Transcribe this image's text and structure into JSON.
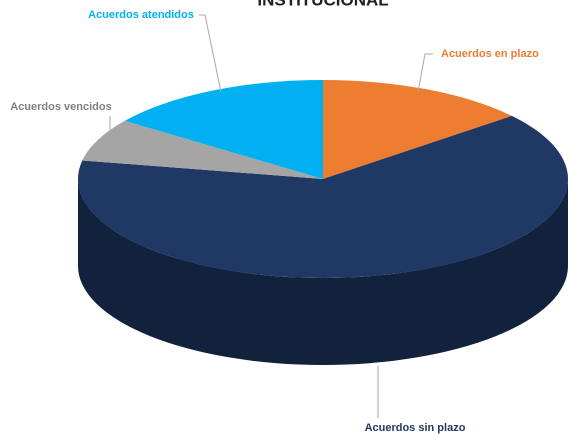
{
  "chart_data": {
    "type": "pie",
    "title": "INSTITUCIONAL",
    "categories": [
      "Acuerdos en plazo",
      "Acuerdos sin plazo",
      "Acuerdos vencidos",
      "Acuerdos atendidos"
    ],
    "values": [
      14,
      64,
      7,
      15
    ],
    "colors": [
      "#ed7d31",
      "#1f3864",
      "#a5a5a5",
      "#00b0f0"
    ]
  }
}
